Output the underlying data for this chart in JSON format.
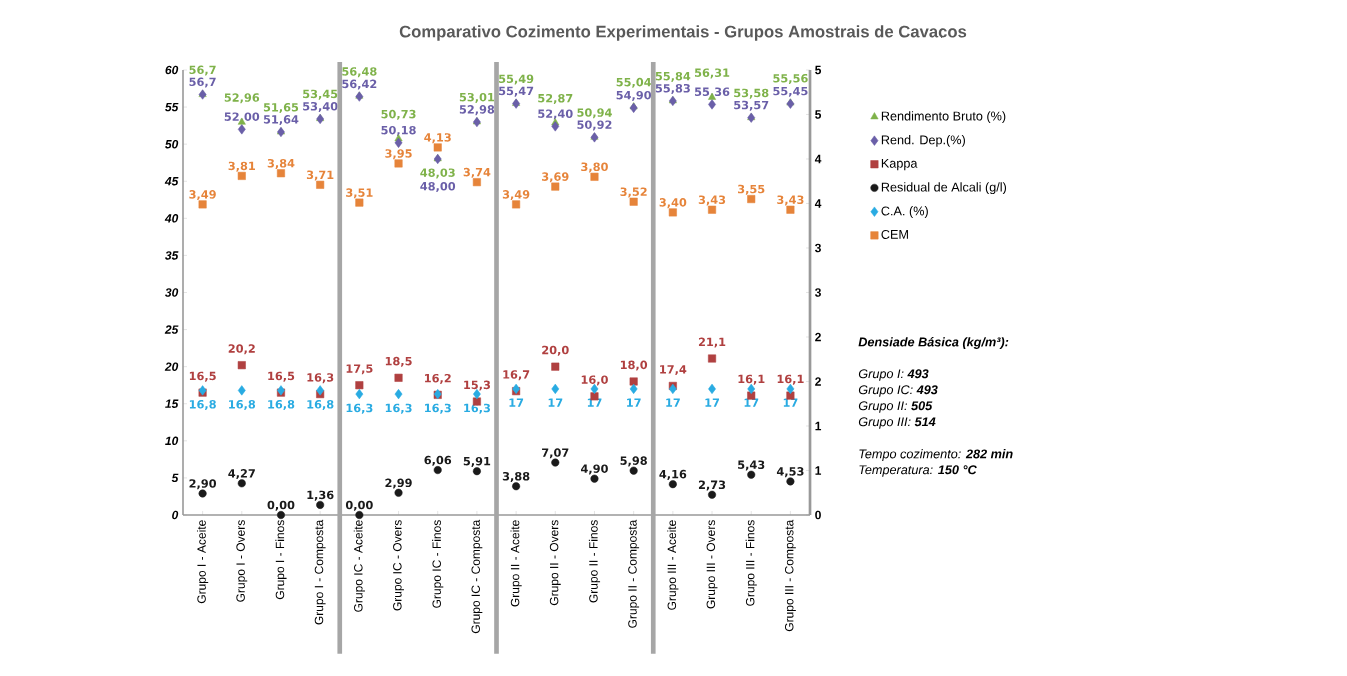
{
  "chart_data": {
    "type": "scatter",
    "title": "Comparativo Cozimento Experimentais - Grupos Amostrais de Cavacos",
    "categories": [
      "Grupo I - Aceite",
      "Grupo I - Overs",
      "Grupo I - Finos",
      "Grupo I - Composta",
      "Grupo IC - Aceite",
      "Grupo IC - Overs",
      "Grupo IC - Finos",
      "Grupo IC - Composta",
      "Grupo II - Aceite",
      "Grupo II - Overs",
      "Grupo II - Finos",
      "Grupo II - Composta",
      "Grupo III - Aceite",
      "Grupo III - Overs",
      "Grupo III - Finos",
      "Grupo III - Composta"
    ],
    "series": [
      {
        "name": "Rendimento Bruto  (%)",
        "color": "#7fb24a",
        "marker": "triangle",
        "values": [
          56.7,
          52.96,
          51.65,
          53.45,
          56.48,
          50.73,
          48.03,
          53.01,
          55.49,
          52.87,
          50.94,
          55.04,
          55.84,
          56.31,
          53.58,
          55.56
        ],
        "value_labels": [
          "56,7",
          "52,96",
          "51,65",
          "53,45",
          "56,48",
          "50,73",
          "48,03",
          "53,01",
          "55,49",
          "52,87",
          "50,94",
          "55,04",
          "55,84",
          "56,31",
          "53,58",
          "55,56"
        ]
      },
      {
        "name": "Rend. Dep.(%)",
        "color": "#6a5fa8",
        "marker": "diamond",
        "values": [
          56.7,
          52.0,
          51.64,
          53.4,
          56.42,
          50.18,
          48.0,
          52.98,
          55.47,
          52.4,
          50.92,
          54.9,
          55.83,
          55.36,
          53.57,
          55.45
        ],
        "value_labels": [
          "56,7",
          "52,00",
          "51,64",
          "53,40",
          "56,42",
          "50,18",
          "48,00",
          "52,98",
          "55,47",
          "52,40",
          "50,92",
          "54,90",
          "55,83",
          "55,36",
          "53,57",
          "55,45"
        ]
      },
      {
        "name": "Kappa",
        "color": "#b04040",
        "marker": "square",
        "values": [
          16.5,
          20.2,
          16.5,
          16.3,
          17.5,
          18.5,
          16.2,
          15.3,
          16.7,
          20.0,
          16.0,
          18.0,
          17.4,
          21.1,
          16.1,
          16.1
        ],
        "value_labels": [
          "16,5",
          "20,2",
          "16,5",
          "16,3",
          "17,5",
          "18,5",
          "16,2",
          "15,3",
          "16,7",
          "20,0",
          "16,0",
          "18,0",
          "17,4",
          "21,1",
          "16,1",
          "16,1"
        ]
      },
      {
        "name": "Residual de Alcali (g/l)",
        "color": "#1a1a1a",
        "marker": "circle",
        "values": [
          2.9,
          4.27,
          0.0,
          1.36,
          0.0,
          2.99,
          6.06,
          5.91,
          3.88,
          7.07,
          4.9,
          5.98,
          4.16,
          2.73,
          5.43,
          4.53
        ],
        "value_labels": [
          "2,90",
          "4,27",
          "0,00",
          "1,36",
          "0,00",
          "2,99",
          "6,06",
          "5,91",
          "3,88",
          "7,07",
          "4,90",
          "5,98",
          "4,16",
          "2,73",
          "5,43",
          "4,53"
        ]
      },
      {
        "name": "C.A. (%)",
        "color": "#29abe2",
        "marker": "diamond",
        "values": [
          16.8,
          16.8,
          16.8,
          16.8,
          16.3,
          16.3,
          16.3,
          16.3,
          17,
          17,
          17,
          17,
          17,
          17,
          17,
          17
        ],
        "value_labels": [
          "16,8",
          "16,8",
          "16,8",
          "16,8",
          "16,3",
          "16,3",
          "16,3",
          "16,3",
          "17",
          "17",
          "17",
          "17",
          "17",
          "17",
          "17",
          "17"
        ]
      },
      {
        "name": "CEM",
        "color": "#e6843a",
        "marker": "square",
        "axis": "y2",
        "values": [
          3.49,
          3.81,
          3.84,
          3.71,
          3.51,
          3.95,
          4.13,
          3.74,
          3.49,
          3.69,
          3.8,
          3.52,
          3.4,
          3.43,
          3.55,
          3.43
        ],
        "value_labels": [
          "3,49",
          "3,81",
          "3,84",
          "3,71",
          "3,51",
          "3,95",
          "4,13",
          "3,74",
          "3,49",
          "3,69",
          "3,80",
          "3,52",
          "3,40",
          "3,43",
          "3,55",
          "3,43"
        ]
      }
    ],
    "ylim": [
      0,
      60
    ],
    "yticks": [
      0,
      5,
      10,
      15,
      20,
      25,
      30,
      35,
      40,
      45,
      50,
      55,
      60
    ],
    "y2lim": [
      0,
      5
    ],
    "y2ticks": [
      0,
      {
        "value": 0.5,
        "label": "1"
      },
      1,
      {
        "value": 1.5,
        "label": "2"
      },
      2,
      {
        "value": 2.5,
        "label": "3"
      },
      3,
      {
        "value": 3.5,
        "label": "4"
      },
      4,
      {
        "value": 4.5,
        "label": "5"
      },
      5
    ],
    "legend": "right",
    "annotations": [
      "Densiade Básica (kg/m³):",
      "Grupo I:   **493**",
      "Grupo IC: **493**",
      "Grupo II:  **505**",
      "Grupo III: **514**",
      "Tempo  cozimento: **282 min**",
      "Temperatura: **150 °C**"
    ]
  }
}
